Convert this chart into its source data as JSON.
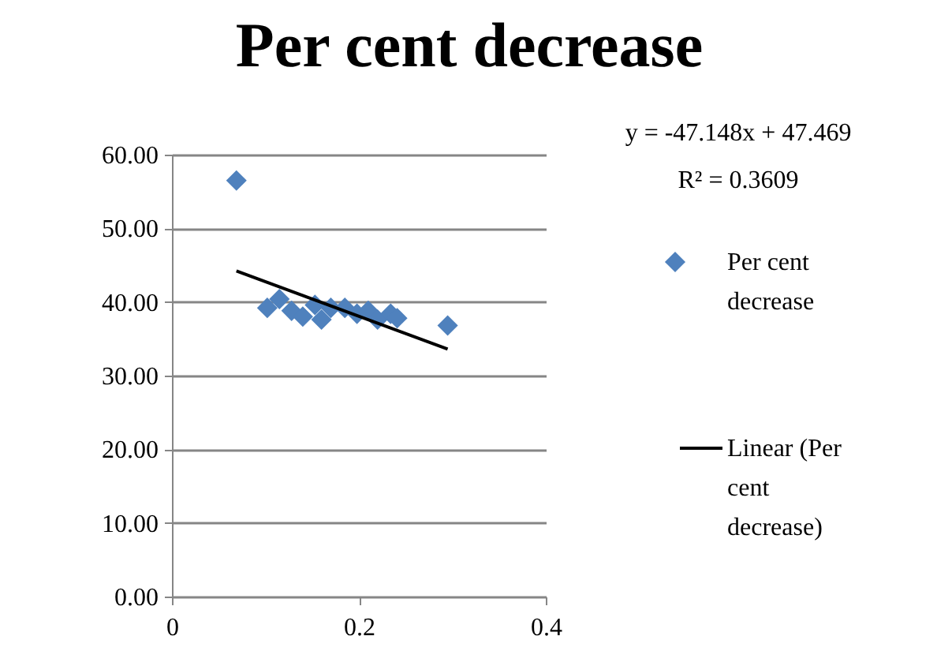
{
  "chart_data": {
    "type": "scatter",
    "title": "Per cent decrease",
    "series": [
      {
        "name": "Per cent decrease",
        "color": "#4f81bd",
        "marker": "diamond",
        "x": [
          0.069,
          0.102,
          0.115,
          0.128,
          0.14,
          0.153,
          0.16,
          0.17,
          0.185,
          0.198,
          0.21,
          0.22,
          0.234,
          0.241,
          0.295
        ],
        "values": [
          56.5,
          39.2,
          40.4,
          38.8,
          38.0,
          39.6,
          37.6,
          39.2,
          39.2,
          38.4,
          38.8,
          37.6,
          38.4,
          37.8,
          36.8
        ]
      },
      {
        "name": "Linear (Per cent decrease)",
        "type": "line",
        "color": "#000000",
        "marker": "none",
        "x": [
          0.069,
          0.295
        ],
        "values": [
          44.2,
          33.6
        ]
      }
    ],
    "annotations": [
      "y = -47.148x + 47.469",
      "R² = 0.3609"
    ],
    "xlim": [
      0,
      0.4
    ],
    "xticks": [
      0,
      0.2,
      0.4
    ],
    "ylim": [
      0,
      60
    ],
    "yticks": [
      {
        "value": 0,
        "label": "0.00"
      },
      {
        "value": 10,
        "label": "10.00"
      },
      {
        "value": 20,
        "label": "20.00"
      },
      {
        "value": 30,
        "label": "30.00"
      },
      {
        "value": 40,
        "label": "40.00"
      },
      {
        "value": 50,
        "label": "50.00"
      },
      {
        "value": 60,
        "label": "60.00"
      }
    ],
    "grid": "y",
    "legend": "right"
  }
}
